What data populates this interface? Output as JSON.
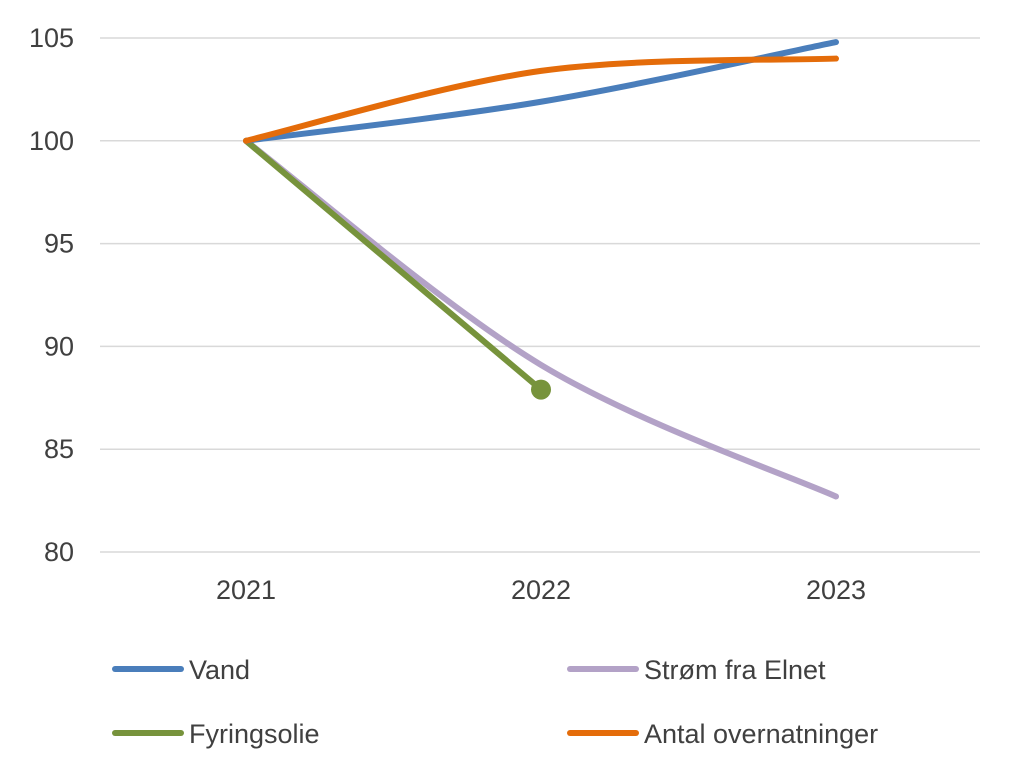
{
  "chart_data": {
    "type": "line",
    "title": "",
    "xlabel": "",
    "ylabel": "",
    "categories": [
      "2021",
      "2022",
      "2023"
    ],
    "ylim": [
      80,
      105
    ],
    "yticks": [
      80,
      85,
      90,
      95,
      100,
      105
    ],
    "grid": true,
    "legend_position": "bottom",
    "series": [
      {
        "name": "Vand",
        "color": "#4A7EBB",
        "values": [
          100,
          101.9,
          104.8
        ],
        "smooth": true
      },
      {
        "name": "Strøm fra Elnet",
        "color": "#B3A2C7",
        "values": [
          100,
          89.1,
          82.7
        ],
        "smooth": true
      },
      {
        "name": "Fyringsolie",
        "color": "#77933C",
        "values": [
          100,
          87.9,
          null
        ],
        "smooth": false,
        "end_marker": true
      },
      {
        "name": "Antal overnatninger",
        "color": "#E46C0A",
        "values": [
          100,
          103.4,
          104.0
        ],
        "smooth": true
      }
    ]
  }
}
